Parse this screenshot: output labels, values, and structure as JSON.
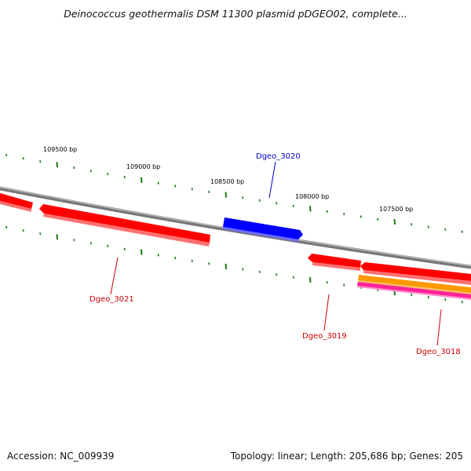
{
  "title": "Deinococcus geothermalis DSM 11300 plasmid pDGEO02, complete...",
  "footer": {
    "accession": "Accession: NC_009939",
    "summary": "Topology: linear; Length: 205,686 bp; Genes: 205"
  },
  "colors": {
    "forward_gene": "#0000ff",
    "reverse_gene": "#ff0000",
    "orange_feature": "#ff9900",
    "magenta_feature": "#ff33aa",
    "backbone": "#888888",
    "tick": "#1a7a1a"
  },
  "bp_labels": [
    "109500 bp",
    "109000 bp",
    "108500 bp",
    "108000 bp",
    "107500 bp"
  ],
  "genes": [
    {
      "name": "Dgeo_3020",
      "strand": "forward"
    },
    {
      "name": "Dgeo_3021",
      "strand": "reverse"
    },
    {
      "name": "Dgeo_3019",
      "strand": "reverse"
    },
    {
      "name": "Dgeo_3018",
      "strand": "reverse"
    }
  ]
}
